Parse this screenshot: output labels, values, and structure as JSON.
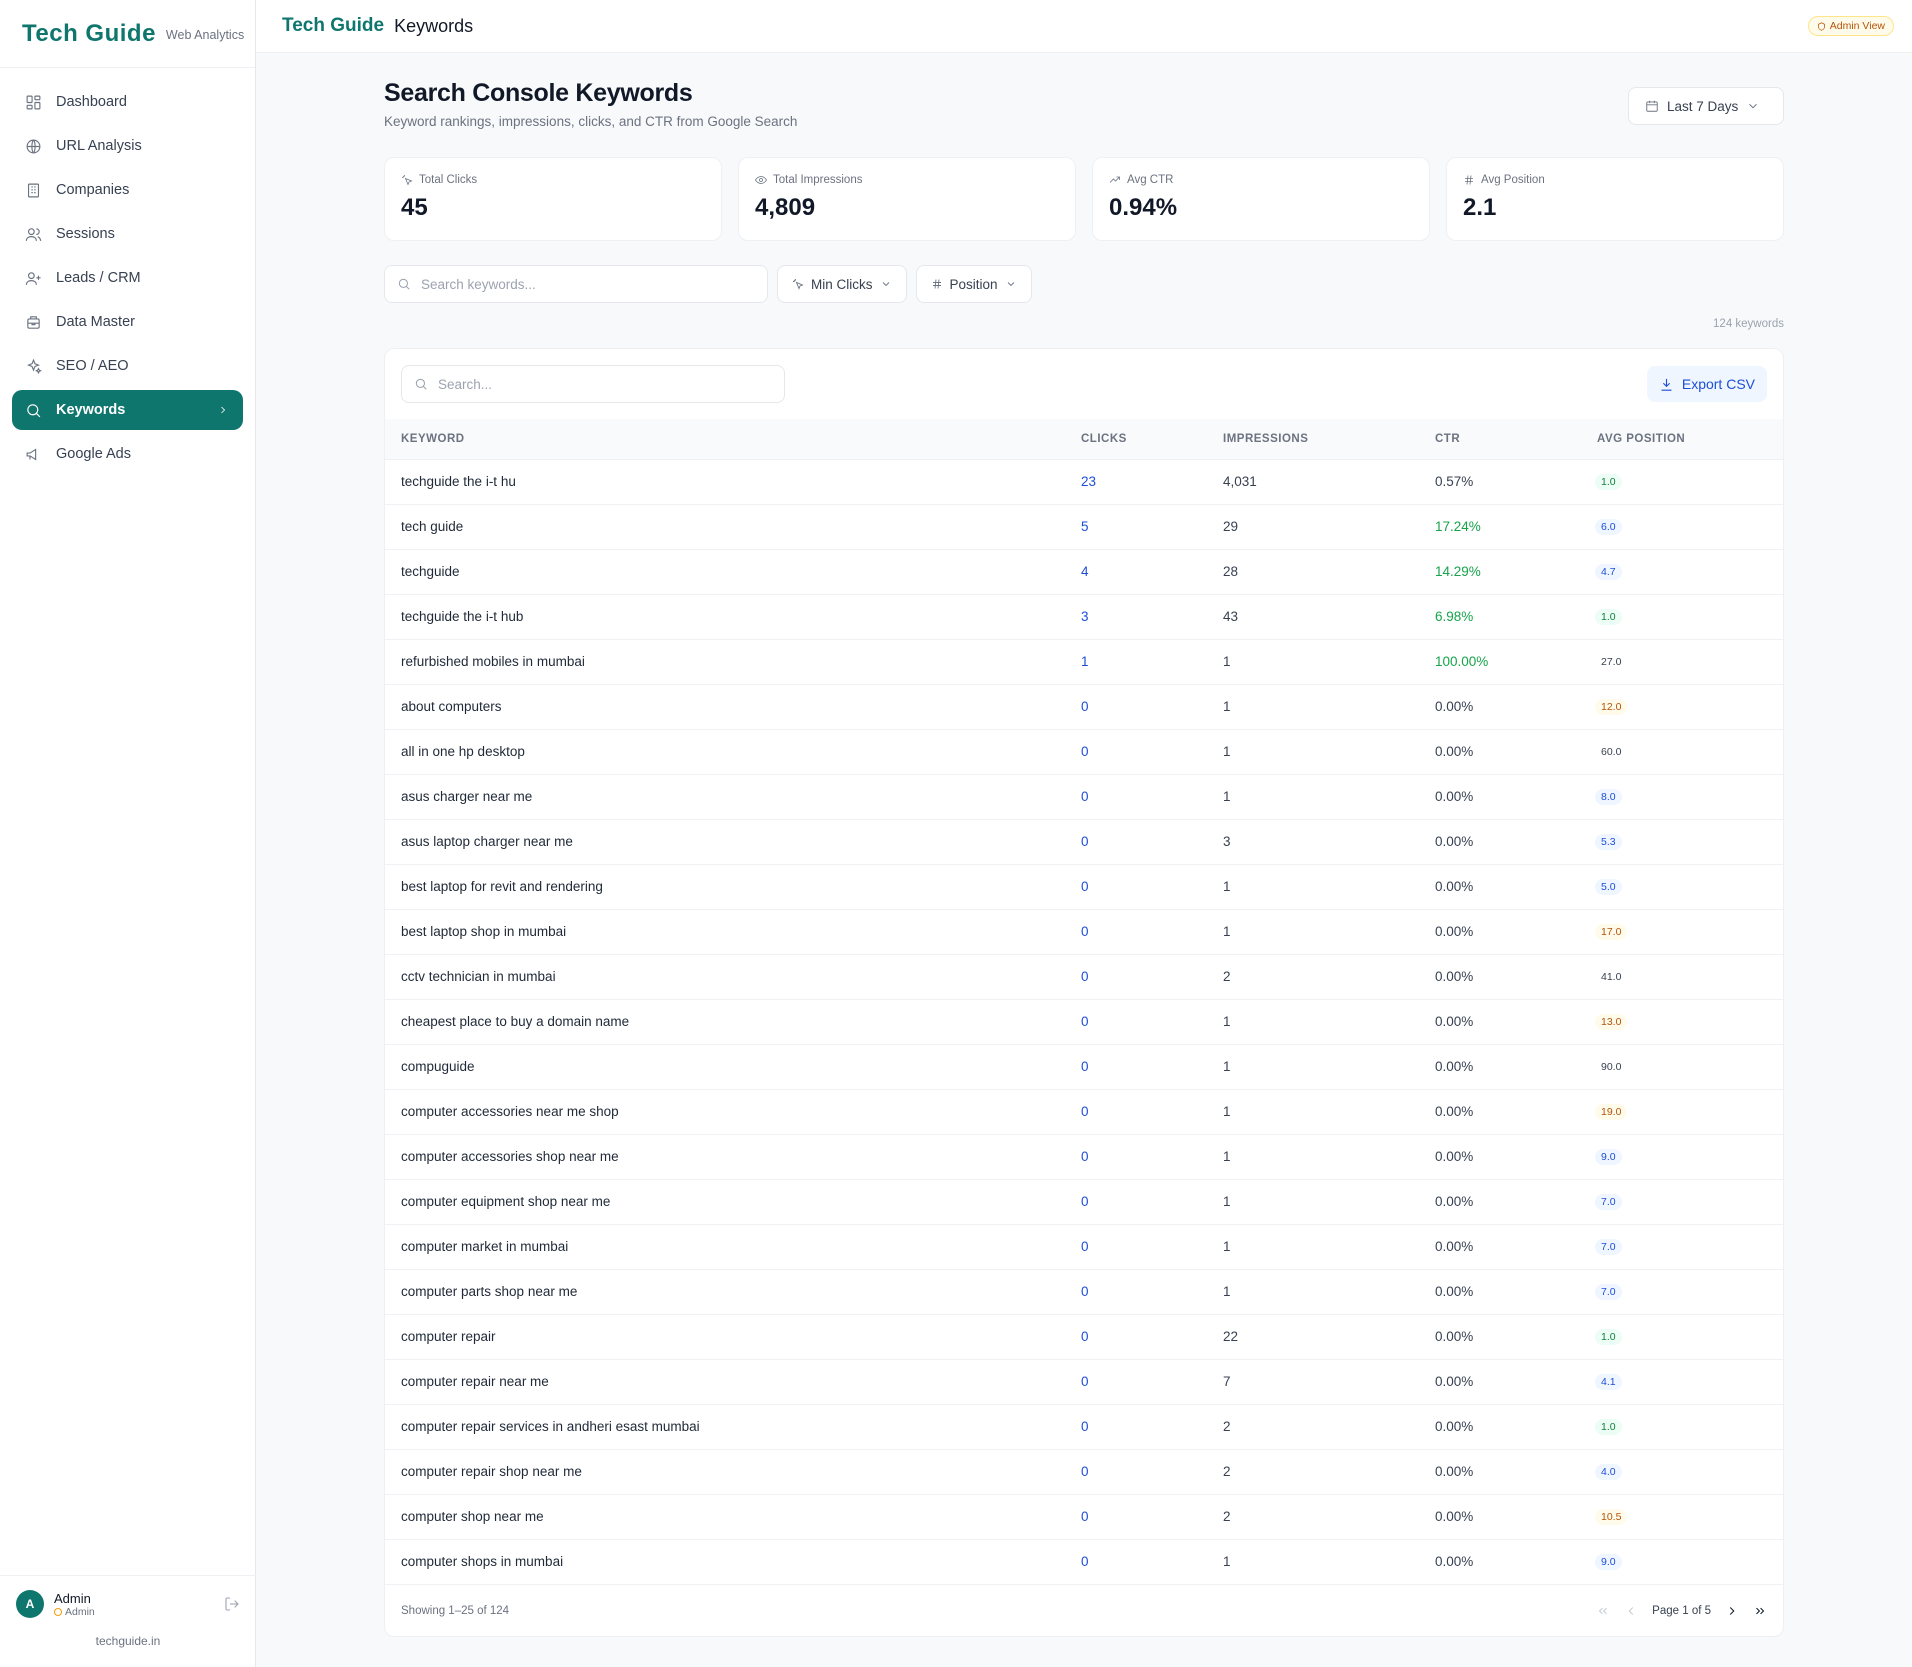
{
  "brand": {
    "logo_a": "Tech ",
    "logo_b": "Guide",
    "subtitle": "Web Analytics",
    "footer_domain": "techguide.in"
  },
  "sidebar": {
    "items": [
      {
        "label": "Dashboard",
        "icon": "grid-icon"
      },
      {
        "label": "URL Analysis",
        "icon": "globe-icon"
      },
      {
        "label": "Companies",
        "icon": "building-icon"
      },
      {
        "label": "Sessions",
        "icon": "users-icon"
      },
      {
        "label": "Leads / CRM",
        "icon": "user-plus-icon"
      },
      {
        "label": "Data Master",
        "icon": "database-icon"
      },
      {
        "label": "SEO / AEO",
        "icon": "sparkles-icon"
      },
      {
        "label": "Keywords",
        "icon": "search-icon",
        "active": true
      },
      {
        "label": "Google Ads",
        "icon": "megaphone-icon"
      }
    ]
  },
  "user": {
    "initial": "A",
    "name": "Admin",
    "role": "Admin"
  },
  "header": {
    "title": "Keywords",
    "badge": "Admin View"
  },
  "page": {
    "title": "Search Console Keywords",
    "subtitle": "Keyword rankings, impressions, clicks, and CTR from Google Search",
    "date_range": "Last 7 Days"
  },
  "stats": [
    {
      "label": "Total Clicks",
      "value": "45",
      "icon": "click-icon"
    },
    {
      "label": "Total Impressions",
      "value": "4,809",
      "icon": "eye-icon"
    },
    {
      "label": "Avg CTR",
      "value": "0.94%",
      "icon": "trending-up-icon"
    },
    {
      "label": "Avg Position",
      "value": "2.1",
      "icon": "hash-icon"
    }
  ],
  "filters": {
    "search_placeholder": "Search keywords...",
    "min_clicks": "Min Clicks",
    "position": "Position",
    "count": "124 keywords"
  },
  "table": {
    "search_placeholder": "Search...",
    "export_label": "Export CSV",
    "columns": [
      "Keyword",
      "Clicks",
      "Impressions",
      "CTR",
      "Avg Position"
    ],
    "rows": [
      {
        "keyword": "techguide the i-t hu",
        "clicks": "23",
        "impressions": "4,031",
        "ctr": "0.57%",
        "position": "1.0",
        "ctr_good": false,
        "pos_color": "green"
      },
      {
        "keyword": "tech guide",
        "clicks": "5",
        "impressions": "29",
        "ctr": "17.24%",
        "position": "6.0",
        "ctr_good": true,
        "pos_color": "blue"
      },
      {
        "keyword": "techguide",
        "clicks": "4",
        "impressions": "28",
        "ctr": "14.29%",
        "position": "4.7",
        "ctr_good": true,
        "pos_color": "blue"
      },
      {
        "keyword": "techguide the i-t hub",
        "clicks": "3",
        "impressions": "43",
        "ctr": "6.98%",
        "position": "1.0",
        "ctr_good": true,
        "pos_color": "green"
      },
      {
        "keyword": "refurbished mobiles in mumbai",
        "clicks": "1",
        "impressions": "1",
        "ctr": "100.00%",
        "position": "27.0",
        "ctr_good": true,
        "pos_color": "gray"
      },
      {
        "keyword": "about computers",
        "clicks": "0",
        "impressions": "1",
        "ctr": "0.00%",
        "position": "12.0",
        "ctr_good": false,
        "pos_color": "amber"
      },
      {
        "keyword": "all in one hp desktop",
        "clicks": "0",
        "impressions": "1",
        "ctr": "0.00%",
        "position": "60.0",
        "ctr_good": false,
        "pos_color": "gray"
      },
      {
        "keyword": "asus charger near me",
        "clicks": "0",
        "impressions": "1",
        "ctr": "0.00%",
        "position": "8.0",
        "ctr_good": false,
        "pos_color": "blue"
      },
      {
        "keyword": "asus laptop charger near me",
        "clicks": "0",
        "impressions": "3",
        "ctr": "0.00%",
        "position": "5.3",
        "ctr_good": false,
        "pos_color": "blue"
      },
      {
        "keyword": "best laptop for revit and rendering",
        "clicks": "0",
        "impressions": "1",
        "ctr": "0.00%",
        "position": "5.0",
        "ctr_good": false,
        "pos_color": "blue"
      },
      {
        "keyword": "best laptop shop in mumbai",
        "clicks": "0",
        "impressions": "1",
        "ctr": "0.00%",
        "position": "17.0",
        "ctr_good": false,
        "pos_color": "amber"
      },
      {
        "keyword": "cctv technician in mumbai",
        "clicks": "0",
        "impressions": "2",
        "ctr": "0.00%",
        "position": "41.0",
        "ctr_good": false,
        "pos_color": "gray"
      },
      {
        "keyword": "cheapest place to buy a domain name",
        "clicks": "0",
        "impressions": "1",
        "ctr": "0.00%",
        "position": "13.0",
        "ctr_good": false,
        "pos_color": "amber"
      },
      {
        "keyword": "compuguide",
        "clicks": "0",
        "impressions": "1",
        "ctr": "0.00%",
        "position": "90.0",
        "ctr_good": false,
        "pos_color": "gray"
      },
      {
        "keyword": "computer accessories near me shop",
        "clicks": "0",
        "impressions": "1",
        "ctr": "0.00%",
        "position": "19.0",
        "ctr_good": false,
        "pos_color": "amber"
      },
      {
        "keyword": "computer accessories shop near me",
        "clicks": "0",
        "impressions": "1",
        "ctr": "0.00%",
        "position": "9.0",
        "ctr_good": false,
        "pos_color": "blue"
      },
      {
        "keyword": "computer equipment shop near me",
        "clicks": "0",
        "impressions": "1",
        "ctr": "0.00%",
        "position": "7.0",
        "ctr_good": false,
        "pos_color": "blue"
      },
      {
        "keyword": "computer market in mumbai",
        "clicks": "0",
        "impressions": "1",
        "ctr": "0.00%",
        "position": "7.0",
        "ctr_good": false,
        "pos_color": "blue"
      },
      {
        "keyword": "computer parts shop near me",
        "clicks": "0",
        "impressions": "1",
        "ctr": "0.00%",
        "position": "7.0",
        "ctr_good": false,
        "pos_color": "blue"
      },
      {
        "keyword": "computer repair",
        "clicks": "0",
        "impressions": "22",
        "ctr": "0.00%",
        "position": "1.0",
        "ctr_good": false,
        "pos_color": "green"
      },
      {
        "keyword": "computer repair near me",
        "clicks": "0",
        "impressions": "7",
        "ctr": "0.00%",
        "position": "4.1",
        "ctr_good": false,
        "pos_color": "blue"
      },
      {
        "keyword": "computer repair services in andheri esast mumbai",
        "clicks": "0",
        "impressions": "2",
        "ctr": "0.00%",
        "position": "1.0",
        "ctr_good": false,
        "pos_color": "green"
      },
      {
        "keyword": "computer repair shop near me",
        "clicks": "0",
        "impressions": "2",
        "ctr": "0.00%",
        "position": "4.0",
        "ctr_good": false,
        "pos_color": "blue"
      },
      {
        "keyword": "computer shop near me",
        "clicks": "0",
        "impressions": "2",
        "ctr": "0.00%",
        "position": "10.5",
        "ctr_good": false,
        "pos_color": "amber"
      },
      {
        "keyword": "computer shops in mumbai",
        "clicks": "0",
        "impressions": "1",
        "ctr": "0.00%",
        "position": "9.0",
        "ctr_good": false,
        "pos_color": "blue"
      }
    ],
    "showing": "Showing 1–25 of 124",
    "page_label": "Page 1 of 5"
  }
}
